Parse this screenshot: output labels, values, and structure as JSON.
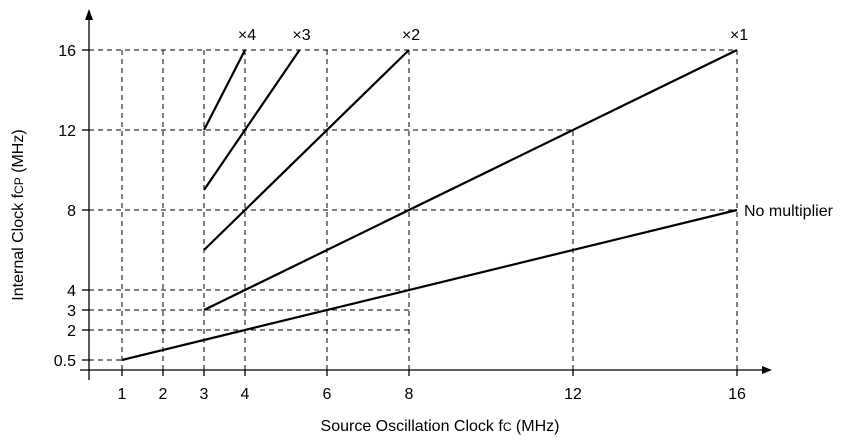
{
  "chart_data": {
    "type": "line",
    "title": "",
    "xlabel_main": "Source Oscillation Clock f",
    "xlabel_sub": "C",
    "xlabel_unit": " (MHz)",
    "ylabel_main": "Internal Clock f",
    "ylabel_sub": "CP",
    "ylabel_unit": " (MHz)",
    "xlim": [
      0,
      17
    ],
    "ylim": [
      0,
      17.5
    ],
    "x_ticks": [
      {
        "value": 1,
        "label": "1"
      },
      {
        "value": 2,
        "label": "2"
      },
      {
        "value": 3,
        "label": "3"
      },
      {
        "value": 4,
        "label": "4"
      },
      {
        "value": 6,
        "label": "6"
      },
      {
        "value": 8,
        "label": "8"
      },
      {
        "value": 12,
        "label": "12"
      },
      {
        "value": 16,
        "label": "16"
      }
    ],
    "y_ticks": [
      {
        "value": 0.5,
        "label": "0.5"
      },
      {
        "value": 2,
        "label": "2"
      },
      {
        "value": 3,
        "label": "3"
      },
      {
        "value": 4,
        "label": "4"
      },
      {
        "value": 8,
        "label": "8"
      },
      {
        "value": 12,
        "label": "12"
      },
      {
        "value": 16,
        "label": "16"
      }
    ],
    "series": [
      {
        "name": "No multiplier",
        "points": [
          [
            1,
            0.5
          ],
          [
            16,
            8
          ]
        ],
        "label_at": "end"
      },
      {
        "name": "×1",
        "points": [
          [
            3,
            3
          ],
          [
            16,
            16
          ]
        ],
        "label_at": "top"
      },
      {
        "name": "×2",
        "points": [
          [
            3,
            6
          ],
          [
            8,
            16
          ]
        ],
        "label_at": "top"
      },
      {
        "name": "×3",
        "points": [
          [
            3,
            9
          ],
          [
            5.33,
            16
          ]
        ],
        "label_at": "top"
      },
      {
        "name": "×4",
        "points": [
          [
            3,
            12
          ],
          [
            4,
            16
          ]
        ],
        "label_at": "top"
      }
    ],
    "guide_lines": [
      {
        "axis": "v",
        "x": 1,
        "y_to": 16
      },
      {
        "axis": "v",
        "x": 2,
        "y_to": 16
      },
      {
        "axis": "v",
        "x": 3,
        "y_to": 16
      },
      {
        "axis": "v",
        "x": 4,
        "y_to": 16
      },
      {
        "axis": "v",
        "x": 6,
        "y_to": 16
      },
      {
        "axis": "v",
        "x": 8,
        "y_to": 16
      },
      {
        "axis": "v",
        "x": 12,
        "y_to": 12
      },
      {
        "axis": "v",
        "x": 16,
        "y_to": 16
      },
      {
        "axis": "h",
        "y": 0.5,
        "x_to": 1
      },
      {
        "axis": "h",
        "y": 2,
        "x_to": 8
      },
      {
        "axis": "h",
        "y": 3,
        "x_to": 8
      },
      {
        "axis": "h",
        "y": 4,
        "x_to": 8
      },
      {
        "axis": "h",
        "y": 8,
        "x_to": 16
      },
      {
        "axis": "h",
        "y": 12,
        "x_to": 12
      },
      {
        "axis": "h",
        "y": 16,
        "x_to": 16
      }
    ],
    "grid": true,
    "legend": "none"
  }
}
